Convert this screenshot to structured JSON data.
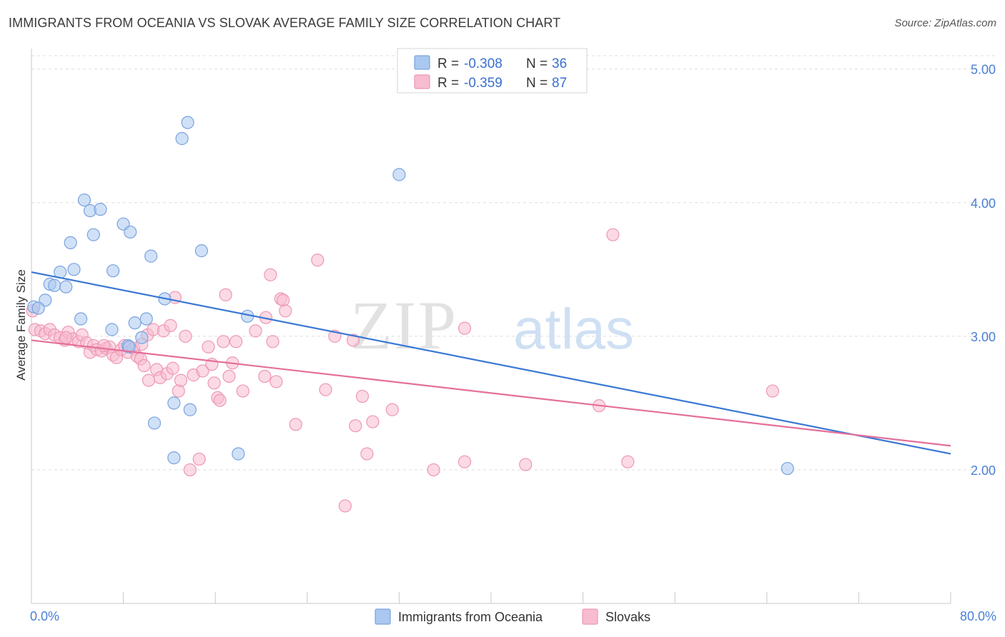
{
  "title": "IMMIGRANTS FROM OCEANIA VS SLOVAK AVERAGE FAMILY SIZE CORRELATION CHART",
  "source": "Source: ZipAtlas.com",
  "watermark": {
    "zip": "ZIP",
    "atlas": "atlas"
  },
  "colors": {
    "blue_fill": "#aac8f0",
    "blue_stroke": "#7aa3e0",
    "blue_line": "#3a78d4",
    "pink_fill": "#f7bcd0",
    "pink_stroke": "#ee97b4",
    "pink_line": "#e46f9b",
    "tick": "#4a7fd6",
    "grid": "#dddddd"
  },
  "legend": {
    "series": [
      {
        "r_label": "R =",
        "r_value": "-0.308",
        "n_label": "N =",
        "n_value": "36"
      },
      {
        "r_label": "R =",
        "r_value": "-0.359",
        "n_label": "N =",
        "n_value": "87"
      }
    ],
    "placement": "top-center"
  },
  "chart_data": {
    "type": "scatter",
    "title": "IMMIGRANTS FROM OCEANIA VS SLOVAK AVERAGE FAMILY SIZE CORRELATION CHART",
    "xlabel": "",
    "ylabel": "Average Family Size",
    "xlim": [
      0,
      80
    ],
    "ylim": [
      1.0,
      5.1
    ],
    "x_tick_labels": [
      "0.0%",
      "80.0%"
    ],
    "y_ticks": [
      2.0,
      3.0,
      4.0,
      5.0
    ],
    "y_tick_labels": [
      "2.00",
      "3.00",
      "4.00",
      "5.00"
    ],
    "grid": true,
    "series": [
      {
        "name": "Immigrants from Oceania",
        "trend": {
          "x": [
            0,
            80
          ],
          "y": [
            3.48,
            2.12
          ]
        },
        "points": [
          [
            0.2,
            3.22
          ],
          [
            1.2,
            3.27
          ],
          [
            0.6,
            3.21
          ],
          [
            1.6,
            3.39
          ],
          [
            2.0,
            3.38
          ],
          [
            2.5,
            3.48
          ],
          [
            3.0,
            3.37
          ],
          [
            3.4,
            3.7
          ],
          [
            3.7,
            3.5
          ],
          [
            4.3,
            3.13
          ],
          [
            4.6,
            4.02
          ],
          [
            5.1,
            3.94
          ],
          [
            5.4,
            3.76
          ],
          [
            6.0,
            3.95
          ],
          [
            7.1,
            3.49
          ],
          [
            7.0,
            3.05
          ],
          [
            8.0,
            3.84
          ],
          [
            8.4,
            2.93
          ],
          [
            8.6,
            3.78
          ],
          [
            9.0,
            3.1
          ],
          [
            9.6,
            2.99
          ],
          [
            10.0,
            3.13
          ],
          [
            10.4,
            3.6
          ],
          [
            10.7,
            2.35
          ],
          [
            11.6,
            3.28
          ],
          [
            12.4,
            2.5
          ],
          [
            12.4,
            2.09
          ],
          [
            13.1,
            4.48
          ],
          [
            13.6,
            4.6
          ],
          [
            13.8,
            2.45
          ],
          [
            14.8,
            3.64
          ],
          [
            18.0,
            2.12
          ],
          [
            18.8,
            3.15
          ],
          [
            32.0,
            4.21
          ],
          [
            65.8,
            2.01
          ],
          [
            8.5,
            2.92
          ]
        ]
      },
      {
        "name": "Slovaks",
        "trend": {
          "x": [
            0,
            80
          ],
          "y": [
            2.97,
            2.18
          ]
        },
        "points": [
          [
            0.3,
            3.05
          ],
          [
            0.8,
            3.04
          ],
          [
            1.2,
            3.02
          ],
          [
            1.6,
            3.05
          ],
          [
            2.0,
            3.01
          ],
          [
            2.5,
            2.99
          ],
          [
            2.9,
            2.97
          ],
          [
            3.2,
            3.03
          ],
          [
            3.6,
            2.98
          ],
          [
            4.1,
            2.96
          ],
          [
            4.4,
            3.01
          ],
          [
            4.8,
            2.95
          ],
          [
            5.1,
            2.88
          ],
          [
            5.4,
            2.93
          ],
          [
            5.7,
            2.9
          ],
          [
            6.1,
            2.89
          ],
          [
            6.5,
            2.91
          ],
          [
            6.8,
            2.92
          ],
          [
            7.1,
            2.86
          ],
          [
            7.4,
            2.84
          ],
          [
            7.8,
            2.9
          ],
          [
            8.1,
            2.93
          ],
          [
            8.4,
            2.88
          ],
          [
            8.9,
            2.91
          ],
          [
            9.2,
            2.85
          ],
          [
            9.5,
            2.83
          ],
          [
            9.8,
            2.78
          ],
          [
            10.1,
            3.01
          ],
          [
            10.2,
            2.67
          ],
          [
            10.6,
            3.05
          ],
          [
            10.9,
            2.75
          ],
          [
            11.2,
            2.69
          ],
          [
            11.5,
            3.04
          ],
          [
            11.8,
            2.72
          ],
          [
            12.1,
            3.08
          ],
          [
            12.3,
            2.76
          ],
          [
            12.5,
            3.29
          ],
          [
            12.8,
            2.59
          ],
          [
            13.0,
            2.67
          ],
          [
            13.4,
            3.0
          ],
          [
            13.8,
            2.0
          ],
          [
            14.1,
            2.71
          ],
          [
            14.6,
            2.08
          ],
          [
            14.9,
            2.74
          ],
          [
            15.4,
            2.92
          ],
          [
            15.7,
            2.79
          ],
          [
            15.9,
            2.65
          ],
          [
            16.2,
            2.54
          ],
          [
            16.4,
            2.52
          ],
          [
            16.9,
            3.31
          ],
          [
            17.2,
            2.7
          ],
          [
            17.5,
            2.8
          ],
          [
            17.8,
            2.96
          ],
          [
            18.4,
            2.59
          ],
          [
            19.5,
            3.04
          ],
          [
            20.3,
            2.7
          ],
          [
            20.4,
            3.14
          ],
          [
            20.8,
            3.46
          ],
          [
            21.0,
            2.96
          ],
          [
            21.3,
            2.66
          ],
          [
            21.7,
            3.28
          ],
          [
            21.9,
            3.27
          ],
          [
            22.1,
            3.19
          ],
          [
            23.0,
            2.34
          ],
          [
            24.9,
            3.57
          ],
          [
            25.6,
            2.6
          ],
          [
            26.4,
            3.0
          ],
          [
            27.3,
            1.73
          ],
          [
            28.0,
            2.97
          ],
          [
            28.2,
            2.33
          ],
          [
            28.8,
            2.55
          ],
          [
            29.2,
            2.12
          ],
          [
            29.7,
            2.36
          ],
          [
            31.4,
            2.45
          ],
          [
            35.0,
            2.0
          ],
          [
            37.7,
            3.06
          ],
          [
            37.7,
            2.06
          ],
          [
            43.0,
            2.04
          ],
          [
            49.4,
            2.48
          ],
          [
            50.6,
            3.76
          ],
          [
            51.9,
            2.06
          ],
          [
            64.5,
            2.59
          ],
          [
            3.0,
            2.99
          ],
          [
            6.3,
            2.93
          ],
          [
            9.6,
            2.94
          ],
          [
            0.1,
            3.19
          ],
          [
            16.7,
            2.96
          ]
        ]
      }
    ]
  },
  "bottom_legend": {
    "items": [
      "Immigrants from Oceania",
      "Slovaks"
    ],
    "placement": "bottom-center"
  }
}
